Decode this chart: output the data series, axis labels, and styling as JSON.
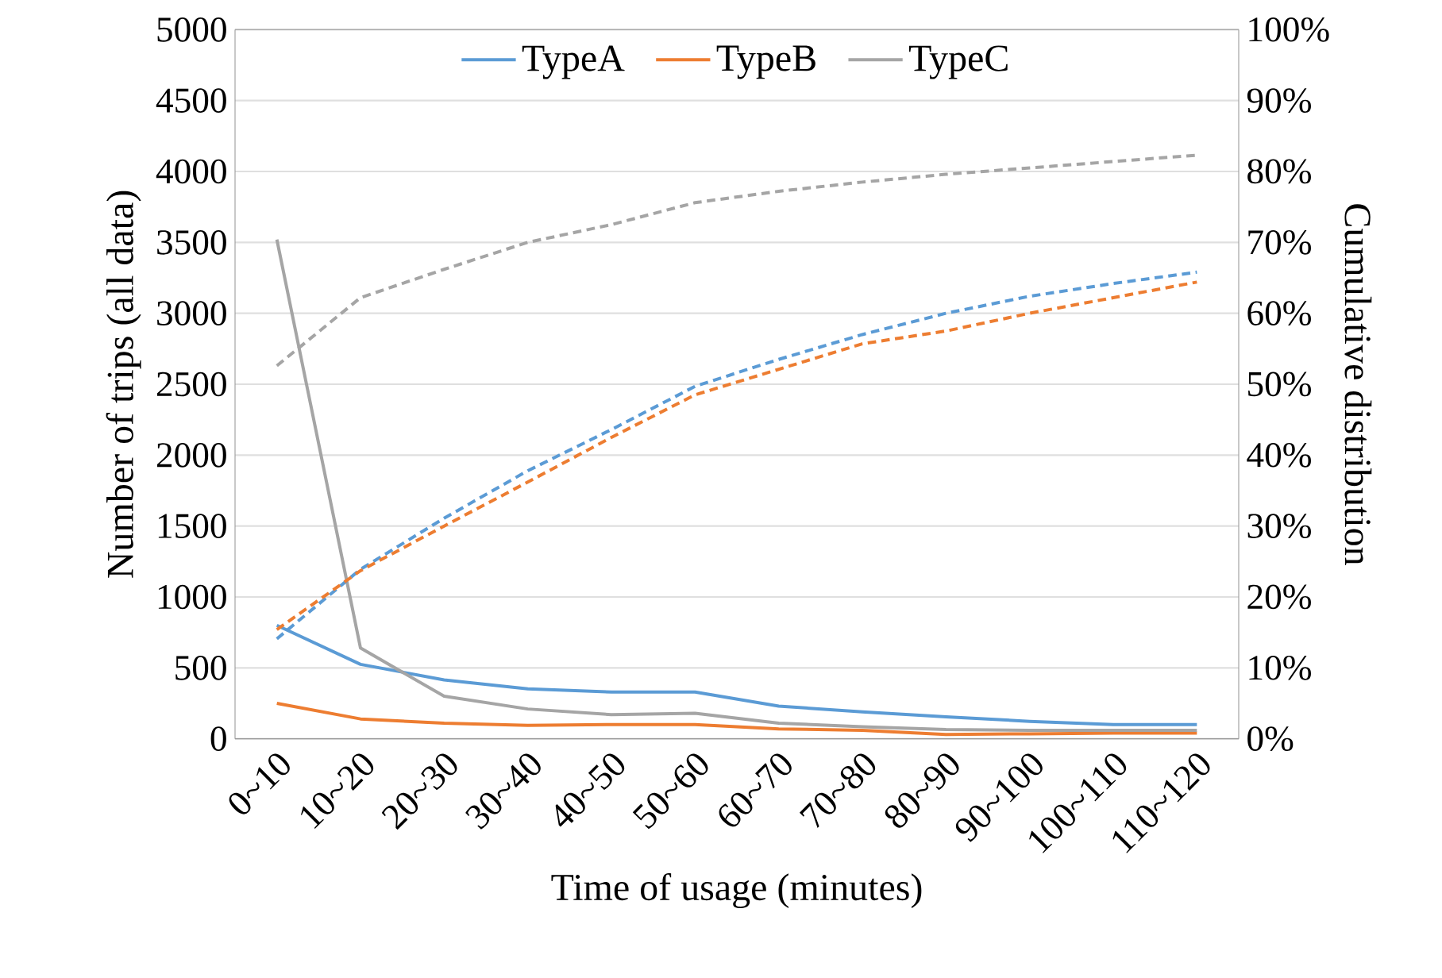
{
  "chart_data": {
    "type": "line",
    "xlabel": "Time of usage (minutes)",
    "ylabel": "Number of trips (all data)",
    "y2label": "Cumulative distribution",
    "categories": [
      "0~10",
      "10~20",
      "20~30",
      "30~40",
      "40~50",
      "50~60",
      "60~70",
      "70~80",
      "80~90",
      "90~100",
      "100~110",
      "110~120"
    ],
    "series": [
      {
        "name": "TypeA",
        "color": "#5b9bd5",
        "values": [
          800,
          525,
          415,
          352,
          330,
          330,
          230,
          190,
          155,
          123,
          100,
          100
        ]
      },
      {
        "name": "TypeB",
        "color": "#ed7d31",
        "values": [
          250,
          140,
          110,
          95,
          100,
          100,
          70,
          60,
          30,
          35,
          40,
          40
        ]
      },
      {
        "name": "TypeC",
        "color": "#a5a5a5",
        "values": [
          3520,
          640,
          300,
          210,
          170,
          180,
          110,
          85,
          65,
          60,
          60,
          60
        ]
      },
      {
        "color": "#5b9bd5",
        "axis": "y2",
        "line_style": "dashed",
        "values": [
          14.1,
          23.9,
          31.1,
          37.8,
          43.6,
          49.7,
          53.5,
          57.0,
          60.0,
          62.4,
          64.2,
          65.8
        ]
      },
      {
        "color": "#ed7d31",
        "axis": "y2",
        "line_style": "dashed",
        "values": [
          15.4,
          23.7,
          30.0,
          36.2,
          42.5,
          48.5,
          52.1,
          55.7,
          57.5,
          60.0,
          62.2,
          64.4
        ]
      },
      {
        "color": "#a5a5a5",
        "axis": "y2",
        "line_style": "dashed",
        "values": [
          52.6,
          62.2,
          66.2,
          70.0,
          72.5,
          75.6,
          77.2,
          78.5,
          79.6,
          80.5,
          81.4,
          82.3
        ]
      }
    ],
    "ylim": [
      0,
      5000
    ],
    "yticks": [
      0,
      500,
      1000,
      1500,
      2000,
      2500,
      3000,
      3500,
      4000,
      4500,
      5000
    ],
    "y2lim": [
      0,
      100
    ],
    "y2ticks": [
      {
        "value": 0,
        "label": "0%"
      },
      {
        "value": 10,
        "label": "10%"
      },
      {
        "value": 20,
        "label": "20%"
      },
      {
        "value": 30,
        "label": "30%"
      },
      {
        "value": 40,
        "label": "40%"
      },
      {
        "value": 50,
        "label": "50%"
      },
      {
        "value": 60,
        "label": "60%"
      },
      {
        "value": 70,
        "label": "70%"
      },
      {
        "value": 80,
        "label": "80%"
      },
      {
        "value": 90,
        "label": "90%"
      },
      {
        "value": 100,
        "label": "100%"
      }
    ],
    "grid": "y",
    "legend": "top",
    "line_style": "solid",
    "marker": "none"
  }
}
